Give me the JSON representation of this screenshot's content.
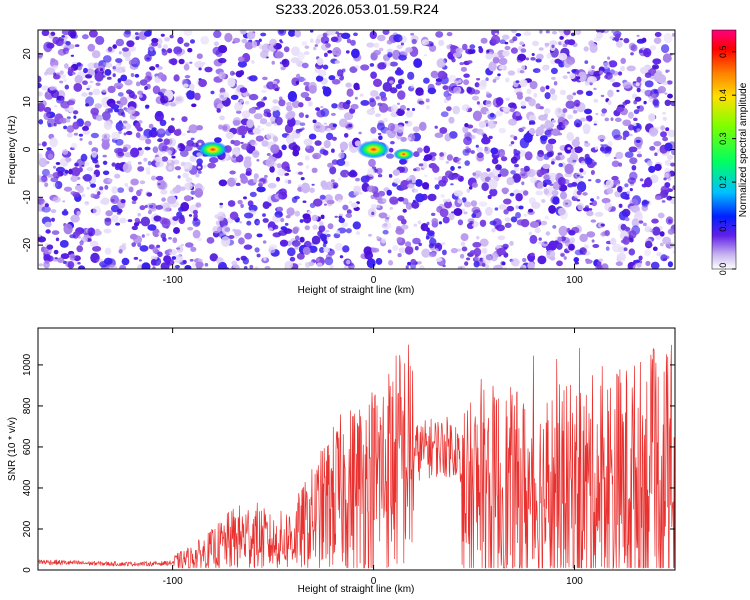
{
  "title": "S233.2026.053.01.59.R24",
  "chart_data": [
    {
      "type": "heatmap",
      "xlabel": "Height of straight line (km)",
      "ylabel": "Frequency (Hz)",
      "xlim": [
        -167,
        150
      ],
      "ylim": [
        -25,
        25
      ],
      "x_ticks": [
        "-100",
        "0",
        "100"
      ],
      "y_ticks": [
        "-20",
        "-10",
        "0",
        "10",
        "20"
      ],
      "colorbar": {
        "label": "Normalized spectral amplitude",
        "range": [
          0,
          0.55
        ],
        "ticks": [
          "0.0",
          "0.1",
          "0.2",
          "0.3",
          "0.4",
          "0.5"
        ]
      },
      "hotspots": [
        {
          "x": 0,
          "y": 0,
          "value": 0.35
        },
        {
          "x": -80,
          "y": 0,
          "value": 0.3
        },
        {
          "x": 15,
          "y": -1,
          "value": 0.15
        }
      ],
      "colors": {
        "background": "#ffffff",
        "low": "#c8b4f0",
        "mid": "#5a1ee6",
        "high": "#ff0000"
      }
    },
    {
      "type": "line",
      "xlabel": "Height of straight line (km)",
      "ylabel": "SNR (10 * v/v)",
      "xlim": [
        -167,
        150
      ],
      "ylim": [
        0,
        1180
      ],
      "x_ticks": [
        "-100",
        "0",
        "100"
      ],
      "y_ticks": [
        "0",
        "200",
        "400",
        "600",
        "800",
        "1000"
      ],
      "series": [
        {
          "color": "#e8312f",
          "x": [
            -167,
            -150,
            -130,
            -110,
            -100,
            -90,
            -80,
            -70,
            -60,
            -50,
            -40,
            -30,
            -20,
            -15,
            -10,
            -5,
            0,
            5,
            10,
            20,
            30,
            40,
            42,
            44,
            46,
            50,
            60,
            70,
            80,
            90,
            100,
            110,
            120,
            130,
            140,
            150
          ],
          "values": [
            40,
            35,
            30,
            30,
            35,
            60,
            100,
            150,
            170,
            130,
            160,
            250,
            350,
            380,
            400,
            430,
            450,
            480,
            520,
            570,
            600,
            600,
            590,
            380,
            320,
            360,
            380,
            370,
            350,
            380,
            380,
            400,
            420,
            430,
            450,
            460
          ]
        }
      ]
    }
  ]
}
